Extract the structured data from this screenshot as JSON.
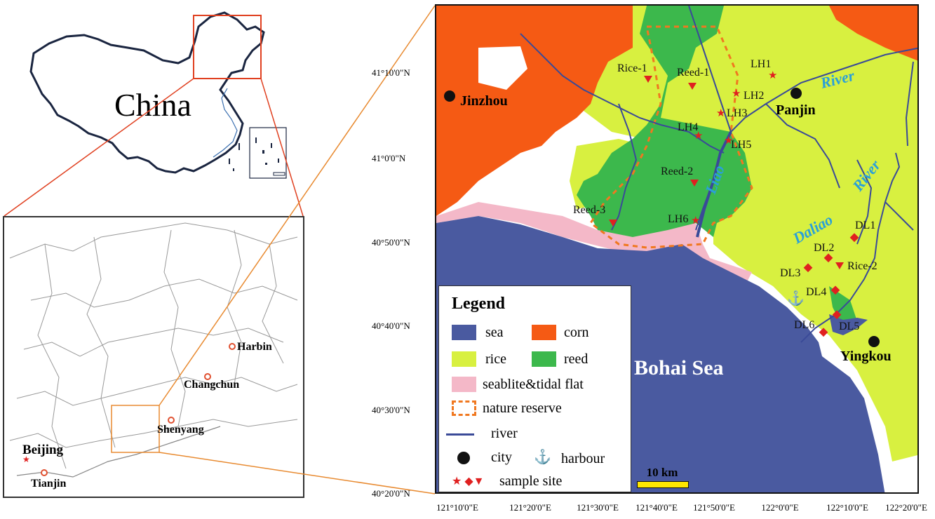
{
  "overview_map": {
    "country_label": "China"
  },
  "regional_map": {
    "cities": [
      {
        "name": "Harbin"
      },
      {
        "name": "Changchun"
      },
      {
        "name": "Shenyang"
      },
      {
        "name": "Beijing"
      },
      {
        "name": "Tianjin"
      }
    ]
  },
  "study_area_map": {
    "cities": [
      {
        "name": "Jinzhou"
      },
      {
        "name": "Panjin"
      },
      {
        "name": "Yingkou"
      }
    ],
    "sea_label": "Bohai Sea",
    "rivers": {
      "liao": "Liao",
      "daliao": "Daliao",
      "river_upper": "River",
      "river_lower": "River"
    },
    "sample_sites": {
      "lh1": "LH1",
      "lh2": "LH2",
      "lh3": "LH3",
      "lh4": "LH4",
      "lh5": "LH5",
      "lh6": "LH6",
      "dl1": "DL1",
      "dl2": "DL2",
      "dl3": "DL3",
      "dl4": "DL4",
      "dl5": "DL5",
      "dl6": "DL6",
      "reed1": "Reed-1",
      "reed2": "Reed-2",
      "reed3": "Reed-3",
      "rice1": "Rice-1",
      "rice2": "Rice-2"
    },
    "x_ticks": [
      "121°10'0\"E",
      "121°20'0\"E",
      "121°30'0\"E",
      "121°40'0\"E",
      "121°50'0\"E",
      "122°0'0\"E",
      "122°10'0\"E",
      "122°20'0\"E"
    ],
    "y_ticks": [
      "41°10'0\"N",
      "41°0'0\"N",
      "40°50'0\"N",
      "40°40'0\"N",
      "40°30'0\"N",
      "40°20'0\"N"
    ],
    "scale_bar": "10 km"
  },
  "legend": {
    "title": "Legend",
    "sea": "sea",
    "corn": "corn",
    "rice": "rice",
    "reed": "reed",
    "seablite": "seablite&tidal flat",
    "nature_reserve": "nature reserve",
    "river": "river",
    "city": "city",
    "harbour": "harbour",
    "sample_site": "sample site"
  },
  "colors": {
    "sea": "#4a5aa0",
    "corn": "#f55a14",
    "rice": "#d8f040",
    "reed": "#3cb84c",
    "seablite": "#f4b8c8",
    "river": "#3a4a98",
    "marker": "#e02020",
    "reserve": "#f07820",
    "locator": "#e87a2a"
  }
}
